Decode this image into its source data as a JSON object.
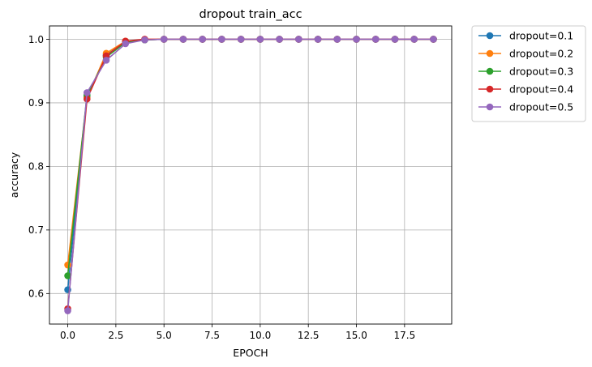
{
  "chart_data": {
    "type": "line",
    "title": "dropout train_acc",
    "xlabel": "EPOCH",
    "ylabel": "accuracy",
    "xlim": [
      -0.95,
      19.95
    ],
    "ylim": [
      0.552,
      1.021
    ],
    "xticks": [
      0.0,
      2.5,
      5.0,
      7.5,
      10.0,
      12.5,
      15.0,
      17.5
    ],
    "xtick_labels": [
      "0.0",
      "2.5",
      "5.0",
      "7.5",
      "10.0",
      "12.5",
      "15.0",
      "17.5"
    ],
    "yticks": [
      0.6,
      0.7,
      0.8,
      0.9,
      1.0
    ],
    "ytick_labels": [
      "0.6",
      "0.7",
      "0.8",
      "0.9",
      "1.0"
    ],
    "grid": true,
    "marker": "circle",
    "legend_position": "outside upper right",
    "x": [
      0,
      1,
      2,
      3,
      4,
      5,
      6,
      7,
      8,
      9,
      10,
      11,
      12,
      13,
      14,
      15,
      16,
      17,
      18,
      19
    ],
    "series": [
      {
        "name": "dropout=0.1",
        "color": "#1f77b4",
        "values": [
          0.606,
          0.91,
          0.975,
          0.996,
          0.999,
          1.0,
          1.0,
          1.0,
          1.0,
          1.0,
          1.0,
          1.0,
          1.0,
          1.0,
          1.0,
          1.0,
          1.0,
          1.0,
          1.0,
          1.0
        ]
      },
      {
        "name": "dropout=0.2",
        "color": "#ff7f0e",
        "values": [
          0.645,
          0.908,
          0.978,
          0.997,
          0.999,
          1.0,
          1.0,
          1.0,
          1.0,
          1.0,
          1.0,
          1.0,
          1.0,
          1.0,
          1.0,
          1.0,
          1.0,
          1.0,
          1.0,
          1.0
        ]
      },
      {
        "name": "dropout=0.3",
        "color": "#2ca02c",
        "values": [
          0.628,
          0.912,
          0.972,
          0.995,
          0.999,
          1.0,
          1.0,
          1.0,
          1.0,
          1.0,
          1.0,
          1.0,
          1.0,
          1.0,
          1.0,
          1.0,
          1.0,
          1.0,
          1.0,
          1.0
        ]
      },
      {
        "name": "dropout=0.4",
        "color": "#d62728",
        "values": [
          0.576,
          0.906,
          0.974,
          0.997,
          1.0,
          1.0,
          1.0,
          1.0,
          1.0,
          1.0,
          1.0,
          1.0,
          1.0,
          1.0,
          1.0,
          1.0,
          1.0,
          1.0,
          1.0,
          1.0
        ]
      },
      {
        "name": "dropout=0.5",
        "color": "#9467bd",
        "values": [
          0.573,
          0.916,
          0.967,
          0.993,
          0.999,
          1.0,
          1.0,
          1.0,
          1.0,
          1.0,
          1.0,
          1.0,
          1.0,
          1.0,
          1.0,
          1.0,
          1.0,
          1.0,
          1.0,
          1.0
        ]
      }
    ]
  }
}
